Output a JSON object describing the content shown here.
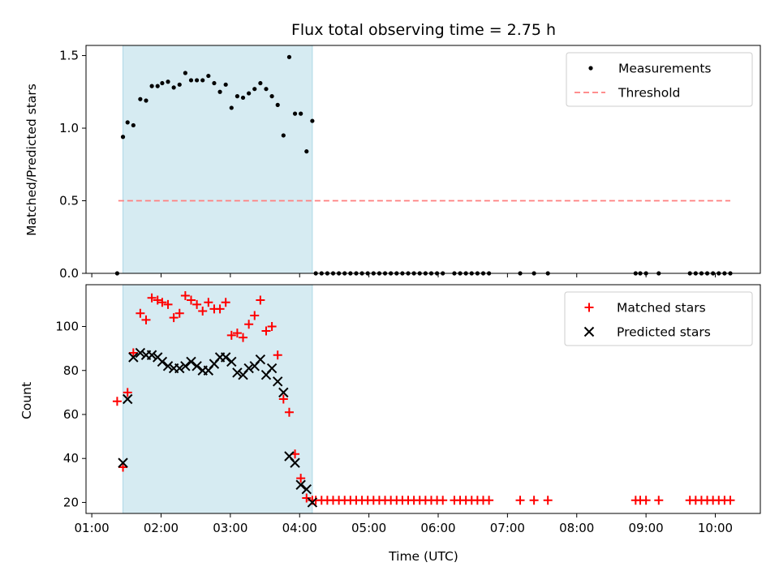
{
  "title": "Flux total observing time = 2.75 h",
  "xlabel": "Time (UTC)",
  "colors": {
    "span": "#add8e6",
    "measurement": "#000000",
    "threshold": "#ff7f7f",
    "matched": "#ff0000",
    "predicted": "#000000"
  },
  "chart_data": [
    {
      "type": "scatter",
      "ylabel": "Matched/Predicted stars",
      "xlim": [
        "00:55",
        "10:39"
      ],
      "ylim": [
        0,
        1.57
      ],
      "yticks": [
        0.0,
        0.5,
        1.0,
        1.5
      ],
      "ytick_labels": [
        "0.0",
        "0.5",
        "1.0",
        "1.5"
      ],
      "observing_span": [
        "01:27",
        "04:11"
      ],
      "legend": {
        "placement": "upper right",
        "entries": [
          "Measurements",
          "Threshold"
        ]
      },
      "threshold": {
        "name": "Threshold",
        "value": 0.5,
        "x_range": [
          "01:23",
          "10:13"
        ],
        "style": "dashed"
      },
      "series": [
        {
          "name": "Measurements",
          "marker": "dot",
          "points": [
            [
              "01:22",
              0.0
            ],
            [
              "01:27",
              0.94
            ],
            [
              "01:31",
              1.04
            ],
            [
              "01:36",
              1.02
            ],
            [
              "01:42",
              1.2
            ],
            [
              "01:47",
              1.19
            ],
            [
              "01:52",
              1.29
            ],
            [
              "01:57",
              1.29
            ],
            [
              "02:01",
              1.31
            ],
            [
              "02:06",
              1.32
            ],
            [
              "02:11",
              1.28
            ],
            [
              "02:16",
              1.3
            ],
            [
              "02:21",
              1.38
            ],
            [
              "02:26",
              1.33
            ],
            [
              "02:31",
              1.33
            ],
            [
              "02:36",
              1.33
            ],
            [
              "02:41",
              1.36
            ],
            [
              "02:46",
              1.31
            ],
            [
              "02:51",
              1.25
            ],
            [
              "02:56",
              1.3
            ],
            [
              "03:01",
              1.14
            ],
            [
              "03:06",
              1.22
            ],
            [
              "03:11",
              1.21
            ],
            [
              "03:16",
              1.24
            ],
            [
              "03:21",
              1.27
            ],
            [
              "03:26",
              1.31
            ],
            [
              "03:31",
              1.27
            ],
            [
              "03:36",
              1.22
            ],
            [
              "03:41",
              1.16
            ],
            [
              "03:46",
              0.95
            ],
            [
              "03:51",
              1.49
            ],
            [
              "03:56",
              1.1
            ],
            [
              "04:01",
              1.1
            ],
            [
              "04:06",
              0.84
            ],
            [
              "04:11",
              1.05
            ],
            [
              "04:14",
              0.0
            ],
            [
              "04:19",
              0.0
            ],
            [
              "04:24",
              0.0
            ],
            [
              "04:29",
              0.0
            ],
            [
              "04:34",
              0.0
            ],
            [
              "04:39",
              0.0
            ],
            [
              "04:44",
              0.0
            ],
            [
              "04:49",
              0.0
            ],
            [
              "04:54",
              0.0
            ],
            [
              "04:59",
              0.0
            ],
            [
              "05:04",
              0.0
            ],
            [
              "05:09",
              0.0
            ],
            [
              "05:14",
              0.0
            ],
            [
              "05:19",
              0.0
            ],
            [
              "05:24",
              0.0
            ],
            [
              "05:29",
              0.0
            ],
            [
              "05:34",
              0.0
            ],
            [
              "05:39",
              0.0
            ],
            [
              "05:44",
              0.0
            ],
            [
              "05:49",
              0.0
            ],
            [
              "05:54",
              0.0
            ],
            [
              "05:59",
              0.0
            ],
            [
              "06:04",
              0.0
            ],
            [
              "06:14",
              0.0
            ],
            [
              "06:19",
              0.0
            ],
            [
              "06:24",
              0.0
            ],
            [
              "06:29",
              0.0
            ],
            [
              "06:34",
              0.0
            ],
            [
              "06:39",
              0.0
            ],
            [
              "06:44",
              0.0
            ],
            [
              "07:11",
              0.0
            ],
            [
              "07:23",
              0.0
            ],
            [
              "07:35",
              0.0
            ],
            [
              "08:51",
              0.0
            ],
            [
              "08:55",
              0.0
            ],
            [
              "09:00",
              0.0
            ],
            [
              "09:11",
              0.0
            ],
            [
              "09:38",
              0.0
            ],
            [
              "09:43",
              0.0
            ],
            [
              "09:48",
              0.0
            ],
            [
              "09:53",
              0.0
            ],
            [
              "09:58",
              0.0
            ],
            [
              "10:03",
              0.0
            ],
            [
              "10:08",
              0.0
            ],
            [
              "10:13",
              0.0
            ]
          ]
        }
      ]
    },
    {
      "type": "scatter",
      "ylabel": "Count",
      "xlim": [
        "00:55",
        "10:39"
      ],
      "ylim": [
        15,
        119
      ],
      "yticks": [
        20,
        40,
        60,
        80,
        100
      ],
      "ytick_labels": [
        "20",
        "40",
        "60",
        "80",
        "100"
      ],
      "xticks": [
        "01:00",
        "02:00",
        "03:00",
        "04:00",
        "05:00",
        "06:00",
        "07:00",
        "08:00",
        "09:00",
        "10:00"
      ],
      "observing_span": [
        "01:27",
        "04:11"
      ],
      "legend": {
        "placement": "upper right",
        "entries": [
          "Matched stars",
          "Predicted stars"
        ]
      },
      "series": [
        {
          "name": "Matched stars",
          "marker": "plus",
          "points": [
            [
              "01:22",
              66
            ],
            [
              "01:27",
              36
            ],
            [
              "01:31",
              70
            ],
            [
              "01:36",
              88
            ],
            [
              "01:42",
              106
            ],
            [
              "01:47",
              103
            ],
            [
              "01:52",
              113
            ],
            [
              "01:57",
              112
            ],
            [
              "02:01",
              111
            ],
            [
              "02:06",
              110
            ],
            [
              "02:11",
              104
            ],
            [
              "02:16",
              106
            ],
            [
              "02:21",
              114
            ],
            [
              "02:26",
              112
            ],
            [
              "02:31",
              110
            ],
            [
              "02:36",
              107
            ],
            [
              "02:41",
              111
            ],
            [
              "02:46",
              108
            ],
            [
              "02:51",
              108
            ],
            [
              "02:56",
              111
            ],
            [
              "03:01",
              96
            ],
            [
              "03:06",
              97
            ],
            [
              "03:11",
              95
            ],
            [
              "03:16",
              101
            ],
            [
              "03:21",
              105
            ],
            [
              "03:26",
              112
            ],
            [
              "03:31",
              98
            ],
            [
              "03:36",
              100
            ],
            [
              "03:41",
              87
            ],
            [
              "03:46",
              67
            ],
            [
              "03:51",
              61
            ],
            [
              "03:56",
              42
            ],
            [
              "04:01",
              31
            ],
            [
              "04:06",
              22
            ],
            [
              "04:11",
              21
            ],
            [
              "04:14",
              21
            ],
            [
              "04:19",
              21
            ],
            [
              "04:24",
              21
            ],
            [
              "04:29",
              21
            ],
            [
              "04:34",
              21
            ],
            [
              "04:39",
              21
            ],
            [
              "04:44",
              21
            ],
            [
              "04:49",
              21
            ],
            [
              "04:54",
              21
            ],
            [
              "04:59",
              21
            ],
            [
              "05:04",
              21
            ],
            [
              "05:09",
              21
            ],
            [
              "05:14",
              21
            ],
            [
              "05:19",
              21
            ],
            [
              "05:24",
              21
            ],
            [
              "05:29",
              21
            ],
            [
              "05:34",
              21
            ],
            [
              "05:39",
              21
            ],
            [
              "05:44",
              21
            ],
            [
              "05:49",
              21
            ],
            [
              "05:54",
              21
            ],
            [
              "05:59",
              21
            ],
            [
              "06:04",
              21
            ],
            [
              "06:14",
              21
            ],
            [
              "06:19",
              21
            ],
            [
              "06:24",
              21
            ],
            [
              "06:29",
              21
            ],
            [
              "06:34",
              21
            ],
            [
              "06:39",
              21
            ],
            [
              "06:44",
              21
            ],
            [
              "07:11",
              21
            ],
            [
              "07:23",
              21
            ],
            [
              "07:35",
              21
            ],
            [
              "08:51",
              21
            ],
            [
              "08:55",
              21
            ],
            [
              "09:00",
              21
            ],
            [
              "09:11",
              21
            ],
            [
              "09:38",
              21
            ],
            [
              "09:43",
              21
            ],
            [
              "09:48",
              21
            ],
            [
              "09:53",
              21
            ],
            [
              "09:58",
              21
            ],
            [
              "10:03",
              21
            ],
            [
              "10:08",
              21
            ],
            [
              "10:13",
              21
            ]
          ]
        },
        {
          "name": "Predicted stars",
          "marker": "x",
          "points": [
            [
              "01:27",
              38
            ],
            [
              "01:31",
              67
            ],
            [
              "01:36",
              86
            ],
            [
              "01:42",
              88
            ],
            [
              "01:47",
              87
            ],
            [
              "01:52",
              87
            ],
            [
              "01:57",
              86
            ],
            [
              "02:01",
              84
            ],
            [
              "02:06",
              82
            ],
            [
              "02:11",
              81
            ],
            [
              "02:16",
              81
            ],
            [
              "02:21",
              82
            ],
            [
              "02:26",
              84
            ],
            [
              "02:31",
              82
            ],
            [
              "02:36",
              80
            ],
            [
              "02:41",
              80
            ],
            [
              "02:46",
              83
            ],
            [
              "02:51",
              86
            ],
            [
              "02:56",
              86
            ],
            [
              "03:01",
              84
            ],
            [
              "03:06",
              79
            ],
            [
              "03:11",
              78
            ],
            [
              "03:16",
              81
            ],
            [
              "03:21",
              82
            ],
            [
              "03:26",
              85
            ],
            [
              "03:31",
              78
            ],
            [
              "03:36",
              81
            ],
            [
              "03:41",
              75
            ],
            [
              "03:46",
              70
            ],
            [
              "03:51",
              41
            ],
            [
              "03:56",
              38
            ],
            [
              "04:01",
              28
            ],
            [
              "04:06",
              26
            ],
            [
              "04:11",
              20
            ]
          ]
        }
      ]
    }
  ]
}
